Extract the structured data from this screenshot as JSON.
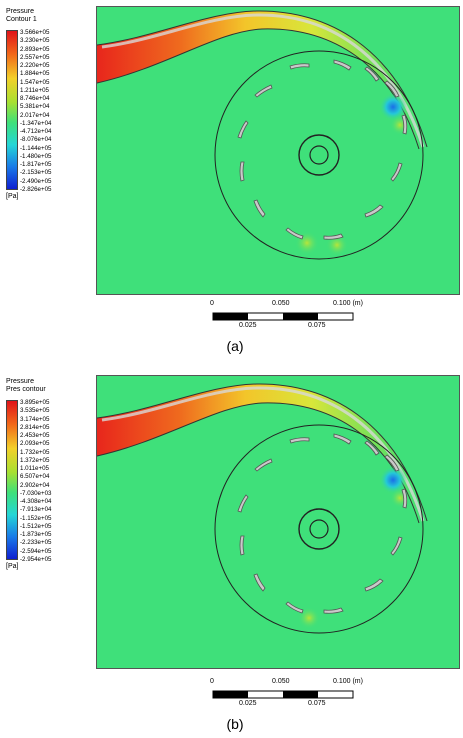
{
  "panels": [
    {
      "caption": "(a)",
      "legend_title_1": "Pressure",
      "legend_title_2": "Contour 1",
      "unit": "[Pa]",
      "ticks": [
        "3.566e+05",
        "3.230e+05",
        "2.893e+05",
        "2.557e+05",
        "2.220e+05",
        "1.884e+05",
        "1.547e+05",
        "1.211e+05",
        "8.746e+04",
        "5.381e+04",
        "2.017e+04",
        "-1.347e+04",
        "-4.712e+04",
        "-8.076e+04",
        "-1.144e+05",
        "-1.480e+05",
        "-1.817e+05",
        "-2.153e+05",
        "-2.490e+05",
        "-2.826e+05"
      ],
      "scale_top": [
        "0",
        "0.050",
        "0.100  (m)"
      ],
      "scale_bottom": [
        "0.025",
        "0.075"
      ]
    },
    {
      "caption": "(b)",
      "legend_title_1": "Pressure",
      "legend_title_2": "Pres contour",
      "unit": "[Pa]",
      "ticks": [
        "3.895e+05",
        "3.535e+05",
        "3.174e+05",
        "2.814e+05",
        "2.453e+05",
        "2.093e+05",
        "1.732e+05",
        "1.372e+05",
        "1.011e+05",
        "6.507e+04",
        "2.902e+04",
        "-7.030e+03",
        "-4.308e+04",
        "-7.913e+04",
        "-1.152e+05",
        "-1.512e+05",
        "-1.873e+05",
        "-2.233e+05",
        "-2.594e+05",
        "-2.954e+05"
      ],
      "scale_top": [
        "0",
        "0.050",
        "0.100  (m)"
      ],
      "scale_bottom": [
        "0.025",
        "0.075"
      ]
    }
  ],
  "colors": {
    "background_field": "#3fe07a",
    "high": "#e8261c",
    "low": "#1020d0",
    "blade": "#c9c9c9"
  }
}
